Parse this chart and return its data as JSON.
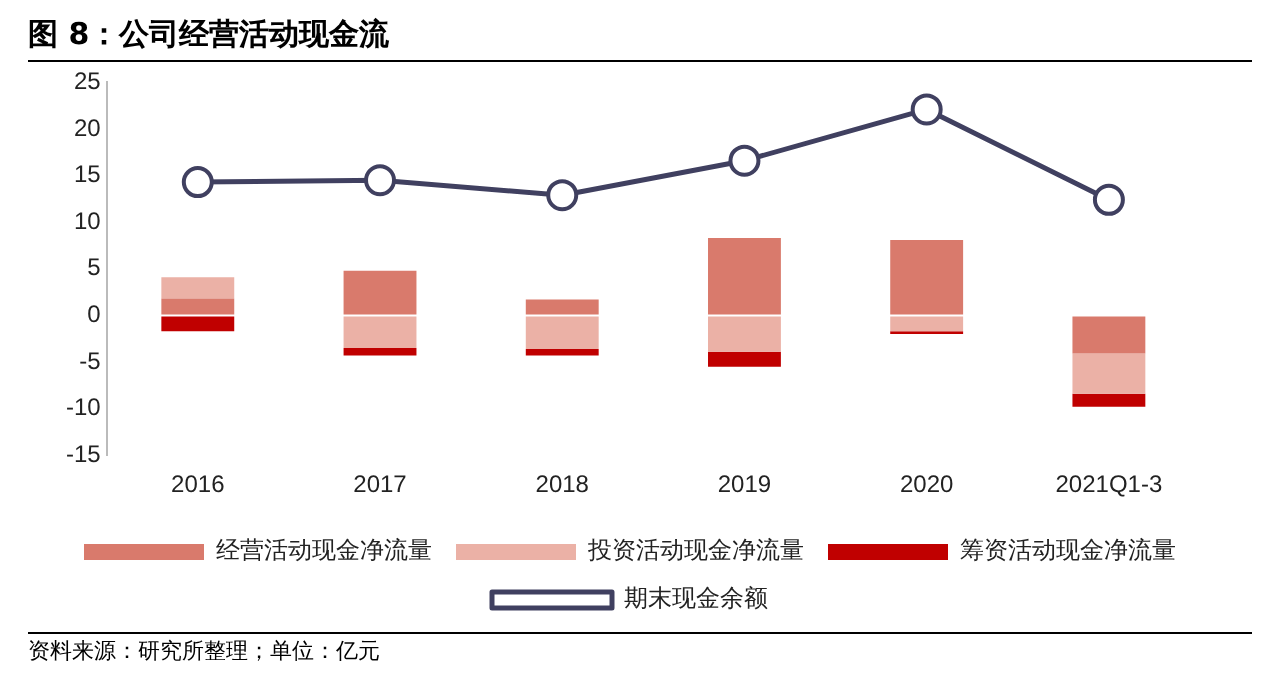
{
  "chart_data": {
    "type": "bar",
    "title": "图 8：公司经营活动现金流",
    "categories": [
      "2016",
      "2017",
      "2018",
      "2019",
      "2020",
      "2021Q1-3"
    ],
    "stacked": true,
    "series": [
      {
        "name": "经营活动现金净流量",
        "color": "#d97a6c",
        "values": [
          1.8,
          4.8,
          1.7,
          8.3,
          8.1,
          -4.1
        ]
      },
      {
        "name": "投资活动现金净流量",
        "color": "#ebb1a6",
        "values": [
          2.3,
          -3.5,
          -3.6,
          -3.9,
          -1.7,
          -4.3
        ]
      },
      {
        "name": "筹资活动现金净流量",
        "color": "#c00000",
        "values": [
          -1.7,
          -0.8,
          -0.7,
          -1.6,
          -0.3,
          -1.4
        ]
      },
      {
        "name": "期末现金余额",
        "type": "line",
        "color": "#404060",
        "marker": "circle",
        "values": [
          14.3,
          14.5,
          12.9,
          16.6,
          22.1,
          12.4
        ]
      }
    ],
    "ylim": [
      -15,
      25
    ],
    "yticks": [
      -15,
      -10,
      -5,
      0,
      5,
      10,
      15,
      20,
      25
    ],
    "grid": false,
    "legend": "bottom",
    "annotations": [
      "资料来源：研究所整理；单位：亿元"
    ]
  }
}
